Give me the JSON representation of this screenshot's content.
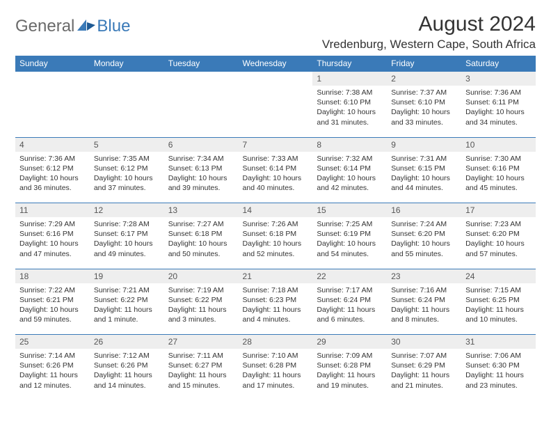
{
  "colors": {
    "header_bg": "#3a7ab8",
    "header_text": "#ffffff",
    "daynum_bg": "#eeeeee",
    "daynum_text": "#555555",
    "cell_text": "#333333",
    "logo_gray": "#6a6a6a",
    "logo_blue": "#3a7ab8",
    "page_bg": "#ffffff",
    "border": "#3a7ab8"
  },
  "fonts": {
    "family": "Arial, Helvetica, sans-serif",
    "month_title_size": 30,
    "location_size": 17,
    "dow_size": 12,
    "daynum_size": 12,
    "cell_size": 10.5
  },
  "logo": {
    "general": "General",
    "blue": "Blue"
  },
  "title": "August 2024",
  "location": "Vredenburg, Western Cape, South Africa",
  "dow": [
    "Sunday",
    "Monday",
    "Tuesday",
    "Wednesday",
    "Thursday",
    "Friday",
    "Saturday"
  ],
  "weeks": [
    [
      null,
      null,
      null,
      null,
      {
        "n": "1",
        "sr": "Sunrise: 7:38 AM",
        "ss": "Sunset: 6:10 PM",
        "dl": "Daylight: 10 hours and 31 minutes."
      },
      {
        "n": "2",
        "sr": "Sunrise: 7:37 AM",
        "ss": "Sunset: 6:10 PM",
        "dl": "Daylight: 10 hours and 33 minutes."
      },
      {
        "n": "3",
        "sr": "Sunrise: 7:36 AM",
        "ss": "Sunset: 6:11 PM",
        "dl": "Daylight: 10 hours and 34 minutes."
      }
    ],
    [
      {
        "n": "4",
        "sr": "Sunrise: 7:36 AM",
        "ss": "Sunset: 6:12 PM",
        "dl": "Daylight: 10 hours and 36 minutes."
      },
      {
        "n": "5",
        "sr": "Sunrise: 7:35 AM",
        "ss": "Sunset: 6:12 PM",
        "dl": "Daylight: 10 hours and 37 minutes."
      },
      {
        "n": "6",
        "sr": "Sunrise: 7:34 AM",
        "ss": "Sunset: 6:13 PM",
        "dl": "Daylight: 10 hours and 39 minutes."
      },
      {
        "n": "7",
        "sr": "Sunrise: 7:33 AM",
        "ss": "Sunset: 6:14 PM",
        "dl": "Daylight: 10 hours and 40 minutes."
      },
      {
        "n": "8",
        "sr": "Sunrise: 7:32 AM",
        "ss": "Sunset: 6:14 PM",
        "dl": "Daylight: 10 hours and 42 minutes."
      },
      {
        "n": "9",
        "sr": "Sunrise: 7:31 AM",
        "ss": "Sunset: 6:15 PM",
        "dl": "Daylight: 10 hours and 44 minutes."
      },
      {
        "n": "10",
        "sr": "Sunrise: 7:30 AM",
        "ss": "Sunset: 6:16 PM",
        "dl": "Daylight: 10 hours and 45 minutes."
      }
    ],
    [
      {
        "n": "11",
        "sr": "Sunrise: 7:29 AM",
        "ss": "Sunset: 6:16 PM",
        "dl": "Daylight: 10 hours and 47 minutes."
      },
      {
        "n": "12",
        "sr": "Sunrise: 7:28 AM",
        "ss": "Sunset: 6:17 PM",
        "dl": "Daylight: 10 hours and 49 minutes."
      },
      {
        "n": "13",
        "sr": "Sunrise: 7:27 AM",
        "ss": "Sunset: 6:18 PM",
        "dl": "Daylight: 10 hours and 50 minutes."
      },
      {
        "n": "14",
        "sr": "Sunrise: 7:26 AM",
        "ss": "Sunset: 6:18 PM",
        "dl": "Daylight: 10 hours and 52 minutes."
      },
      {
        "n": "15",
        "sr": "Sunrise: 7:25 AM",
        "ss": "Sunset: 6:19 PM",
        "dl": "Daylight: 10 hours and 54 minutes."
      },
      {
        "n": "16",
        "sr": "Sunrise: 7:24 AM",
        "ss": "Sunset: 6:20 PM",
        "dl": "Daylight: 10 hours and 55 minutes."
      },
      {
        "n": "17",
        "sr": "Sunrise: 7:23 AM",
        "ss": "Sunset: 6:20 PM",
        "dl": "Daylight: 10 hours and 57 minutes."
      }
    ],
    [
      {
        "n": "18",
        "sr": "Sunrise: 7:22 AM",
        "ss": "Sunset: 6:21 PM",
        "dl": "Daylight: 10 hours and 59 minutes."
      },
      {
        "n": "19",
        "sr": "Sunrise: 7:21 AM",
        "ss": "Sunset: 6:22 PM",
        "dl": "Daylight: 11 hours and 1 minute."
      },
      {
        "n": "20",
        "sr": "Sunrise: 7:19 AM",
        "ss": "Sunset: 6:22 PM",
        "dl": "Daylight: 11 hours and 3 minutes."
      },
      {
        "n": "21",
        "sr": "Sunrise: 7:18 AM",
        "ss": "Sunset: 6:23 PM",
        "dl": "Daylight: 11 hours and 4 minutes."
      },
      {
        "n": "22",
        "sr": "Sunrise: 7:17 AM",
        "ss": "Sunset: 6:24 PM",
        "dl": "Daylight: 11 hours and 6 minutes."
      },
      {
        "n": "23",
        "sr": "Sunrise: 7:16 AM",
        "ss": "Sunset: 6:24 PM",
        "dl": "Daylight: 11 hours and 8 minutes."
      },
      {
        "n": "24",
        "sr": "Sunrise: 7:15 AM",
        "ss": "Sunset: 6:25 PM",
        "dl": "Daylight: 11 hours and 10 minutes."
      }
    ],
    [
      {
        "n": "25",
        "sr": "Sunrise: 7:14 AM",
        "ss": "Sunset: 6:26 PM",
        "dl": "Daylight: 11 hours and 12 minutes."
      },
      {
        "n": "26",
        "sr": "Sunrise: 7:12 AM",
        "ss": "Sunset: 6:26 PM",
        "dl": "Daylight: 11 hours and 14 minutes."
      },
      {
        "n": "27",
        "sr": "Sunrise: 7:11 AM",
        "ss": "Sunset: 6:27 PM",
        "dl": "Daylight: 11 hours and 15 minutes."
      },
      {
        "n": "28",
        "sr": "Sunrise: 7:10 AM",
        "ss": "Sunset: 6:28 PM",
        "dl": "Daylight: 11 hours and 17 minutes."
      },
      {
        "n": "29",
        "sr": "Sunrise: 7:09 AM",
        "ss": "Sunset: 6:28 PM",
        "dl": "Daylight: 11 hours and 19 minutes."
      },
      {
        "n": "30",
        "sr": "Sunrise: 7:07 AM",
        "ss": "Sunset: 6:29 PM",
        "dl": "Daylight: 11 hours and 21 minutes."
      },
      {
        "n": "31",
        "sr": "Sunrise: 7:06 AM",
        "ss": "Sunset: 6:30 PM",
        "dl": "Daylight: 11 hours and 23 minutes."
      }
    ]
  ]
}
